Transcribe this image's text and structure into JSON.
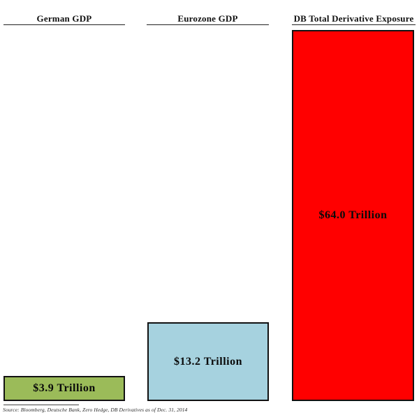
{
  "chart_data": {
    "type": "bar",
    "categories": [
      "German GDP",
      "Eurozone GDP",
      "DB Total Derivative Exposure"
    ],
    "values": [
      3.9,
      13.2,
      64.0
    ],
    "value_labels": [
      "$3.9 Trillion",
      "$13.2 Trillion",
      "$64.0 Trillion"
    ],
    "unit": "trillion USD",
    "colors": [
      "#9BBB59",
      "#A6D2DF",
      "#FF0000"
    ],
    "bar_border_color": "#111111",
    "ylim": [
      0,
      64
    ],
    "grid": false,
    "legend": "none",
    "title": "",
    "source_note": "Source: Bloomberg, Deutsche Bank, Zero Hedge, DB Derivatives as of Dec. 31, 2014"
  }
}
